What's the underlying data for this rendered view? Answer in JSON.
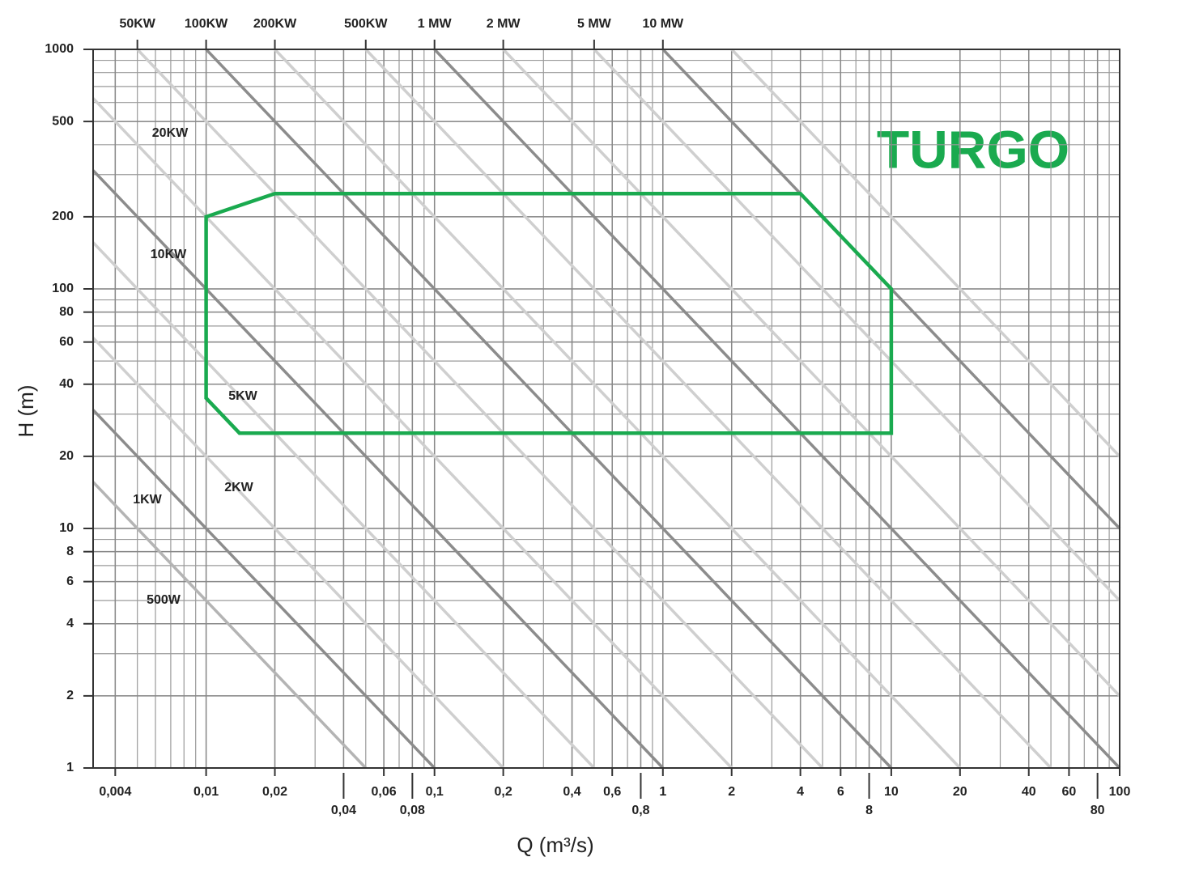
{
  "chart_data": {
    "type": "line",
    "title": "TURGO",
    "xlabel": "Q (m³/s)",
    "ylabel": "H (m)",
    "log_scale": true,
    "grid": true,
    "xlim": [
      0.0032,
      100
    ],
    "ylim": [
      1,
      1000
    ],
    "xticks": [
      {
        "value": 0.004,
        "label": "0,004"
      },
      {
        "value": 0.01,
        "label": "0,01"
      },
      {
        "value": 0.02,
        "label": "0,02"
      },
      {
        "value": 0.06,
        "label": "0,06"
      },
      {
        "value": 0.1,
        "label": "0,1"
      },
      {
        "value": 0.2,
        "label": "0,2"
      },
      {
        "value": 0.4,
        "label": "0,4"
      },
      {
        "value": 0.6,
        "label": "0,6"
      },
      1,
      2,
      4,
      6,
      10,
      20,
      40,
      60,
      100
    ],
    "xticks_lower": [
      {
        "value": 0.04,
        "label": "0,04"
      },
      {
        "value": 0.08,
        "label": "0,08"
      },
      {
        "value": 0.8,
        "label": "0,8"
      },
      8,
      80
    ],
    "yticks": [
      1,
      2,
      4,
      6,
      8,
      10,
      20,
      40,
      60,
      80,
      100,
      200,
      500,
      1000
    ],
    "power_lines": [
      {
        "label": "500W",
        "value": 0.05,
        "color": "#b4b4b4"
      },
      {
        "label": "1KW",
        "value": 0.1,
        "color": "#8c8c8c"
      },
      {
        "label": "2KW",
        "value": 0.2,
        "color": "#cfcfcf"
      },
      {
        "label": "5KW",
        "value": 0.5,
        "color": "#cfcfcf"
      },
      {
        "label": "10KW",
        "value": 1,
        "color": "#8c8c8c"
      },
      {
        "label": "20KW",
        "value": 2,
        "color": "#cfcfcf"
      },
      {
        "label": "50KW",
        "value": 5,
        "color": "#cfcfcf"
      },
      {
        "label": "100KW",
        "value": 10,
        "color": "#8c8c8c"
      },
      {
        "label": "200KW",
        "value": 20,
        "color": "#cfcfcf"
      },
      {
        "label": "500KW",
        "value": 50,
        "color": "#cfcfcf"
      },
      {
        "label": "1 MW",
        "value": 100,
        "color": "#8c8c8c"
      },
      {
        "label": "2 MW",
        "value": 200,
        "color": "#cfcfcf"
      },
      {
        "label": "5 MW",
        "value": 500,
        "color": "#cfcfcf"
      },
      {
        "label": "10 MW",
        "value": 1000,
        "color": "#8c8c8c"
      },
      {
        "value": 2000,
        "color": "#cfcfcf"
      }
    ],
    "region": {
      "color": "#1aaa4f",
      "q": [
        0.01,
        0.02,
        4,
        10,
        10,
        0.014,
        0.01
      ],
      "h": [
        200,
        250,
        250,
        100,
        25,
        25,
        35
      ]
    }
  }
}
